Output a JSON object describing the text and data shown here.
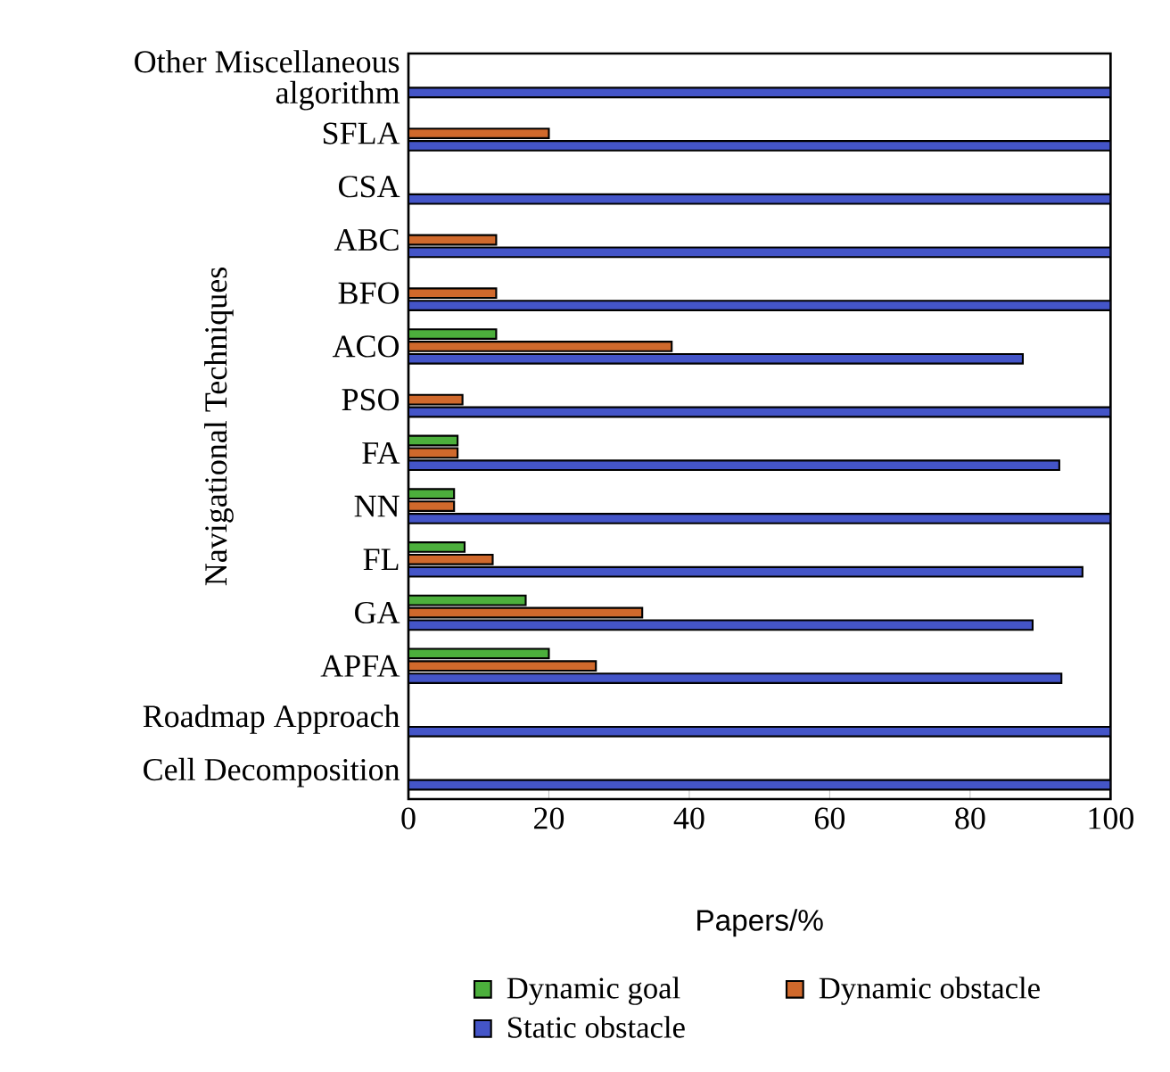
{
  "chart_data": {
    "type": "bar",
    "orientation": "horizontal",
    "xlabel": "Papers/%",
    "ylabel": "Navigational Techniques",
    "categories": [
      "Other Miscellaneous algorithm",
      "SFLA",
      "CSA",
      "ABC",
      "BFO",
      "ACO",
      "PSO",
      "FA",
      "NN",
      "FL",
      "GA",
      "APFA",
      "Roadmap Approach",
      "Cell Decomposition"
    ],
    "series": [
      {
        "name": "Dynamic goal",
        "color": "#4caf3c",
        "values": [
          null,
          null,
          null,
          null,
          null,
          12.5,
          null,
          7,
          6.5,
          8,
          16.7,
          20,
          null,
          null
        ]
      },
      {
        "name": "Dynamic obstacle",
        "color": "#d0692c",
        "values": [
          null,
          20,
          null,
          12.5,
          12.5,
          37.5,
          7.7,
          7,
          6.5,
          12,
          33.3,
          26.7,
          null,
          null
        ]
      },
      {
        "name": "Static obstacle",
        "color": "#4455c8",
        "values": [
          100,
          100,
          100,
          100,
          100,
          87.5,
          100,
          92.7,
          100,
          96,
          88.9,
          93,
          100,
          100
        ]
      }
    ],
    "xlim": [
      0,
      100
    ],
    "xticks": [
      0,
      20,
      40,
      60,
      80,
      100
    ],
    "legend": "bottom"
  }
}
